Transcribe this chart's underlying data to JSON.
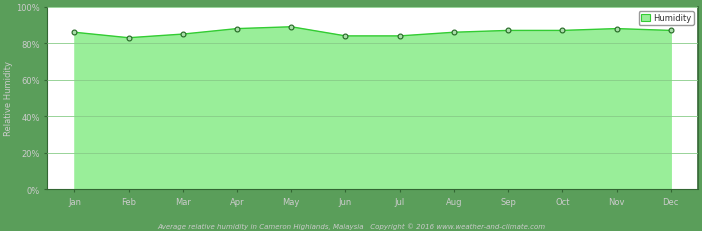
{
  "months": [
    "Jan",
    "Feb",
    "Mar",
    "Apr",
    "May",
    "Jun",
    "Jul",
    "Aug",
    "Sep",
    "Oct",
    "Nov",
    "Dec"
  ],
  "humidity": [
    86,
    83,
    85,
    88,
    89,
    84,
    84,
    86,
    87,
    87,
    88,
    87
  ],
  "y_ticks": [
    0,
    20,
    40,
    60,
    80,
    100
  ],
  "y_tick_labels": [
    "0%",
    "20%",
    "40%",
    "60%",
    "80%",
    "100%"
  ],
  "ylim": [
    0,
    100
  ],
  "ylabel": "Relative Humidity",
  "title": "Average relative humidity in Cameron Highlands, Malaysia   Copyright © 2016 www.weather-and-climate.com",
  "legend_label": "Humidity",
  "line_color": "#33cc33",
  "fill_color": "#99ee99",
  "marker_color": "#226622",
  "marker_fill": "#aaddaa",
  "bg_color": "#5a9e5a",
  "plot_bg_top": "#ffffff",
  "plot_bg_bottom": "#99ee99",
  "grid_color": "#88cc88",
  "border_color": "#336633",
  "text_color": "#cccccc",
  "legend_bg": "#ffffff",
  "legend_border": "#999999"
}
